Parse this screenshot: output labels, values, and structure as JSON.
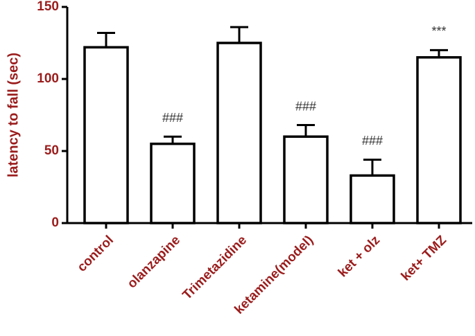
{
  "chart_data": {
    "type": "bar",
    "y_label": "latency to fall (sec)",
    "categories": [
      "control",
      "olanzapine",
      "Trimetazidine",
      "ketamine(model)",
      "ket + olz",
      "ket+ TMZ"
    ],
    "values": [
      122,
      55,
      125,
      60,
      33,
      115
    ],
    "errors": [
      10,
      5,
      11,
      8,
      11,
      5
    ],
    "annotations": [
      null,
      "###",
      null,
      "###",
      "###",
      "***"
    ],
    "color": "#ffffff",
    "ylim": [
      0,
      150
    ],
    "yticks": [
      0,
      50,
      100,
      150
    ]
  }
}
